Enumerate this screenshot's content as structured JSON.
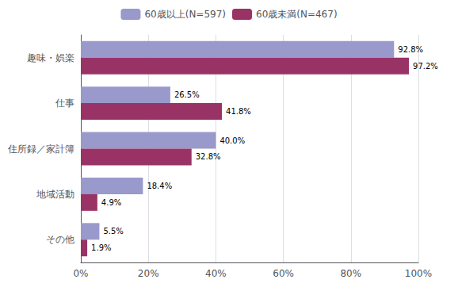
{
  "chart_data": {
    "type": "bar",
    "orientation": "horizontal",
    "categories": [
      "趣味・娯楽",
      "仕事",
      "住所録／家計簿",
      "地域活動",
      "その他"
    ],
    "series": [
      {
        "name": "60歳以上(N=597)",
        "color": "#9999cc",
        "values": [
          92.8,
          26.5,
          40.0,
          18.4,
          5.5
        ],
        "value_labels": [
          "92.8%",
          "26.5%",
          "40.0%",
          "18.4%",
          "5.5%"
        ]
      },
      {
        "name": "60歳未満(N=467)",
        "color": "#993366",
        "values": [
          97.2,
          41.8,
          32.8,
          4.9,
          1.9
        ],
        "value_labels": [
          "97.2%",
          "41.8%",
          "32.8%",
          "4.9%",
          "1.9%"
        ]
      }
    ],
    "xlim": [
      0,
      100
    ],
    "xticks": [
      {
        "value": 0,
        "label": "0%"
      },
      {
        "value": 20,
        "label": "20%"
      },
      {
        "value": 40,
        "label": "40%"
      },
      {
        "value": 60,
        "label": "60%"
      },
      {
        "value": 80,
        "label": "80%"
      },
      {
        "value": 100,
        "label": "100%"
      }
    ],
    "grid": true,
    "legend": "top",
    "data_labels": true
  }
}
